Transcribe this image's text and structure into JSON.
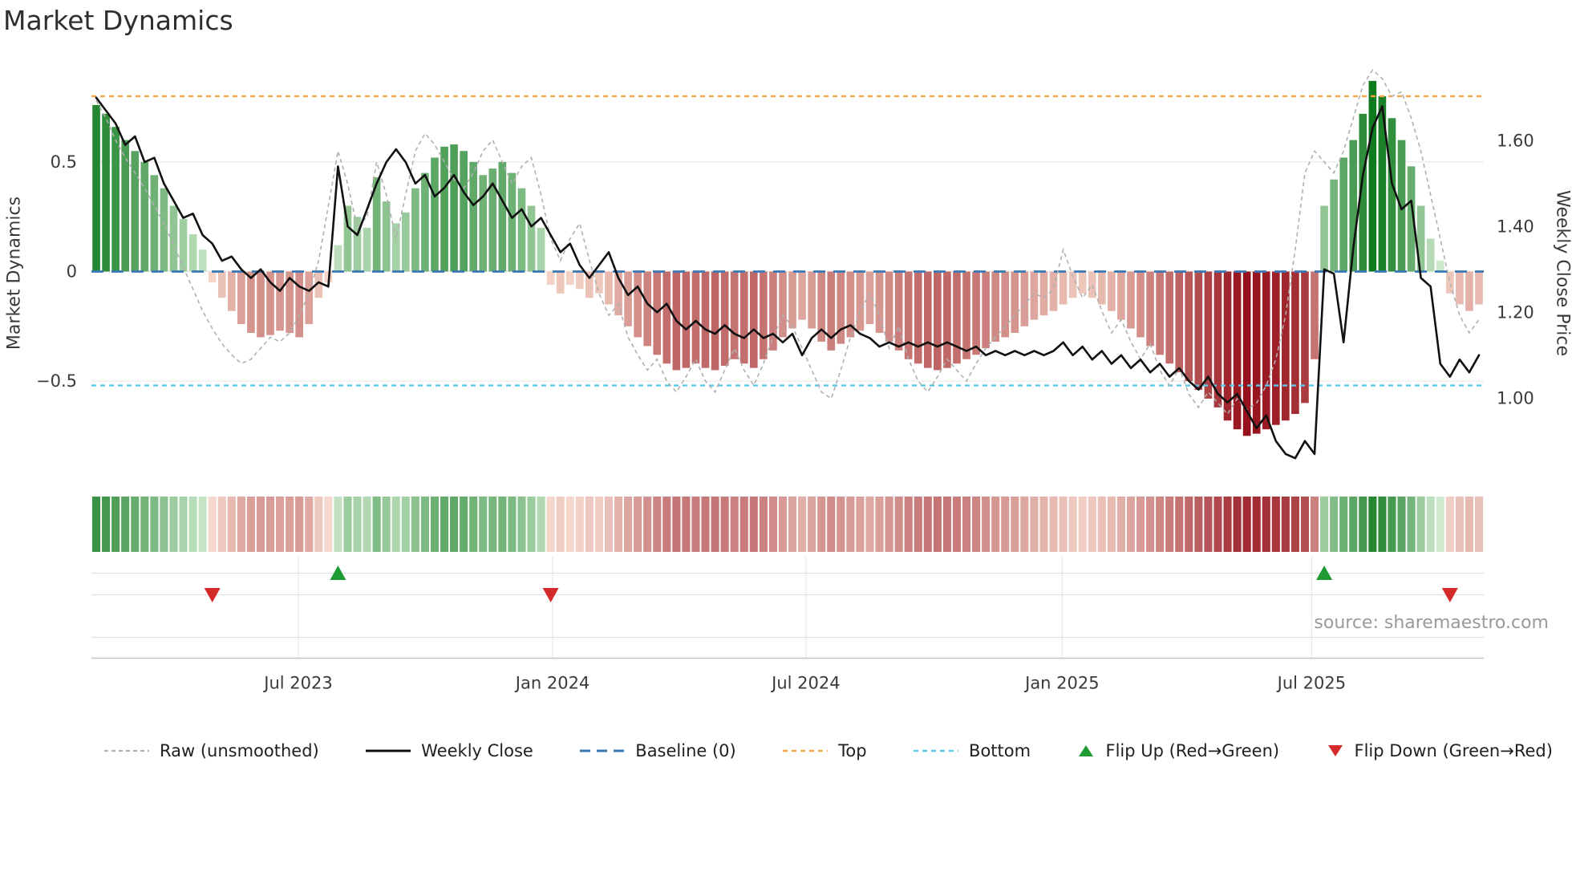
{
  "colors": {
    "green_dark": "#0f7a1e",
    "green_light": "#d8efd5",
    "red_dark": "#96121c",
    "red_light": "#fbe3d4",
    "baseline_blue": "#3878b4",
    "top_orange": "#f2a74b",
    "bottom_cyan": "#5bc8ea",
    "raw_gray": "#b0b0b0",
    "close_black": "#111111",
    "grid_gray": "#e8e8e8",
    "axis_gray": "#c4c4c4",
    "text_dark": "#3a3a3a",
    "text_muted": "#9a9a9a",
    "flip_up_green": "#1e9b33",
    "flip_down_red": "#d42a2a"
  },
  "legend": {
    "raw": "Raw (unsmoothed)",
    "weekly_close": "Weekly Close",
    "baseline": "Baseline (0)",
    "top": "Top",
    "bottom": "Bottom",
    "flip_up": "Flip Up (Red→Green)",
    "flip_down": "Flip Down (Green→Red)"
  },
  "chart_data": {
    "type": "bar+line",
    "title": "Market Dynamics",
    "source": "source: sharemaestro.com",
    "x_unit": "weeks",
    "x_ticks": {
      "positions_week": [
        20.9,
        47.2,
        73.4,
        99.9,
        125.7
      ],
      "labels": [
        "Jul 2023",
        "Jan 2024",
        "Jul 2024",
        "Jan 2025",
        "Jul 2025"
      ]
    },
    "left_axis": {
      "label": "Market Dynamics",
      "range": [
        -0.95,
        0.95
      ],
      "ticks": [
        0.5,
        0,
        -0.5
      ],
      "tick_labels": [
        "0.5",
        "0",
        "−0.5"
      ]
    },
    "right_axis": {
      "label": "Weekly Close Price",
      "range": [
        0.81,
        1.78
      ],
      "ticks": [
        1.6,
        1.4,
        1.2,
        1.0
      ],
      "tick_labels": [
        "1.60",
        "1.40",
        "1.20",
        "1.00"
      ]
    },
    "reference_lines": {
      "baseline": 0,
      "top": 0.8,
      "bottom": -0.52
    },
    "flip_up_weeks": [
      25,
      127
    ],
    "flip_down_weeks": [
      12,
      47,
      140
    ],
    "series": [
      {
        "name": "Market Dynamics (smoothed bars)",
        "type": "bar",
        "axis": "left",
        "values": [
          0.76,
          0.72,
          0.66,
          0.6,
          0.55,
          0.5,
          0.44,
          0.38,
          0.3,
          0.24,
          0.17,
          0.1,
          -0.05,
          -0.12,
          -0.18,
          -0.24,
          -0.28,
          -0.3,
          -0.29,
          -0.27,
          -0.28,
          -0.3,
          -0.24,
          -0.12,
          -0.05,
          0.12,
          0.3,
          0.25,
          0.2,
          0.43,
          0.32,
          0.22,
          0.27,
          0.38,
          0.45,
          0.52,
          0.57,
          0.58,
          0.55,
          0.5,
          0.44,
          0.47,
          0.5,
          0.45,
          0.38,
          0.3,
          0.2,
          -0.06,
          -0.1,
          -0.06,
          -0.08,
          -0.12,
          -0.1,
          -0.15,
          -0.2,
          -0.25,
          -0.3,
          -0.34,
          -0.38,
          -0.42,
          -0.45,
          -0.44,
          -0.42,
          -0.44,
          -0.45,
          -0.43,
          -0.4,
          -0.42,
          -0.44,
          -0.4,
          -0.36,
          -0.3,
          -0.26,
          -0.22,
          -0.26,
          -0.32,
          -0.36,
          -0.33,
          -0.3,
          -0.27,
          -0.24,
          -0.28,
          -0.32,
          -0.36,
          -0.4,
          -0.42,
          -0.44,
          -0.45,
          -0.44,
          -0.42,
          -0.4,
          -0.38,
          -0.35,
          -0.32,
          -0.3,
          -0.28,
          -0.25,
          -0.22,
          -0.2,
          -0.18,
          -0.15,
          -0.12,
          -0.1,
          -0.12,
          -0.15,
          -0.18,
          -0.22,
          -0.26,
          -0.3,
          -0.34,
          -0.38,
          -0.42,
          -0.46,
          -0.5,
          -0.54,
          -0.58,
          -0.62,
          -0.68,
          -0.72,
          -0.75,
          -0.74,
          -0.72,
          -0.7,
          -0.68,
          -0.65,
          -0.6,
          -0.4,
          0.3,
          0.42,
          0.52,
          0.6,
          0.72,
          0.87,
          0.8,
          0.7,
          0.6,
          0.48,
          0.3,
          0.15,
          0.05,
          -0.1,
          -0.15,
          -0.18,
          -0.15
        ]
      },
      {
        "name": "Raw (unsmoothed)",
        "type": "line",
        "axis": "left",
        "values": [
          0.78,
          0.7,
          0.6,
          0.52,
          0.45,
          0.38,
          0.3,
          0.22,
          0.12,
          0.02,
          -0.08,
          -0.18,
          -0.26,
          -0.33,
          -0.38,
          -0.42,
          -0.4,
          -0.35,
          -0.3,
          -0.32,
          -0.28,
          -0.2,
          -0.1,
          0.05,
          0.3,
          0.55,
          0.4,
          0.2,
          0.25,
          0.5,
          0.35,
          0.15,
          0.35,
          0.55,
          0.63,
          0.58,
          0.5,
          0.42,
          0.38,
          0.45,
          0.55,
          0.6,
          0.5,
          0.4,
          0.48,
          0.52,
          0.35,
          0.15,
          0.05,
          0.15,
          0.22,
          0.05,
          -0.1,
          -0.2,
          -0.15,
          -0.3,
          -0.38,
          -0.45,
          -0.4,
          -0.5,
          -0.55,
          -0.48,
          -0.4,
          -0.5,
          -0.55,
          -0.45,
          -0.35,
          -0.45,
          -0.52,
          -0.42,
          -0.3,
          -0.2,
          -0.25,
          -0.35,
          -0.45,
          -0.55,
          -0.58,
          -0.45,
          -0.3,
          -0.18,
          -0.1,
          -0.2,
          -0.35,
          -0.25,
          -0.4,
          -0.5,
          -0.55,
          -0.48,
          -0.4,
          -0.45,
          -0.5,
          -0.42,
          -0.35,
          -0.3,
          -0.25,
          -0.2,
          -0.15,
          -0.1,
          -0.12,
          -0.08,
          0.1,
          -0.02,
          -0.12,
          -0.06,
          -0.18,
          -0.28,
          -0.22,
          -0.32,
          -0.4,
          -0.33,
          -0.45,
          -0.52,
          -0.44,
          -0.56,
          -0.62,
          -0.55,
          -0.6,
          -0.65,
          -0.58,
          -0.63,
          -0.6,
          -0.52,
          -0.4,
          -0.2,
          0.1,
          0.45,
          0.55,
          0.5,
          0.45,
          0.55,
          0.7,
          0.85,
          0.92,
          0.88,
          0.8,
          0.82,
          0.7,
          0.55,
          0.35,
          0.15,
          -0.05,
          -0.2,
          -0.28,
          -0.22
        ]
      },
      {
        "name": "Weekly Close",
        "type": "line",
        "axis": "right",
        "values": [
          1.7,
          1.67,
          1.64,
          1.59,
          1.61,
          1.55,
          1.56,
          1.5,
          1.46,
          1.42,
          1.43,
          1.38,
          1.36,
          1.32,
          1.33,
          1.3,
          1.28,
          1.3,
          1.27,
          1.25,
          1.28,
          1.26,
          1.25,
          1.27,
          1.26,
          1.54,
          1.4,
          1.38,
          1.44,
          1.5,
          1.55,
          1.58,
          1.55,
          1.5,
          1.52,
          1.47,
          1.49,
          1.52,
          1.48,
          1.45,
          1.47,
          1.5,
          1.46,
          1.42,
          1.44,
          1.4,
          1.42,
          1.38,
          1.34,
          1.36,
          1.31,
          1.28,
          1.31,
          1.34,
          1.28,
          1.24,
          1.26,
          1.22,
          1.2,
          1.22,
          1.18,
          1.16,
          1.18,
          1.16,
          1.15,
          1.17,
          1.15,
          1.14,
          1.16,
          1.14,
          1.15,
          1.13,
          1.15,
          1.1,
          1.14,
          1.16,
          1.14,
          1.16,
          1.17,
          1.15,
          1.14,
          1.12,
          1.13,
          1.12,
          1.13,
          1.12,
          1.13,
          1.12,
          1.13,
          1.12,
          1.11,
          1.12,
          1.1,
          1.11,
          1.1,
          1.11,
          1.1,
          1.11,
          1.1,
          1.11,
          1.13,
          1.1,
          1.12,
          1.09,
          1.11,
          1.08,
          1.1,
          1.07,
          1.09,
          1.06,
          1.08,
          1.05,
          1.07,
          1.04,
          1.02,
          1.05,
          1.01,
          0.99,
          1.01,
          0.97,
          0.93,
          0.96,
          0.9,
          0.87,
          0.86,
          0.9,
          0.87,
          1.3,
          1.29,
          1.13,
          1.35,
          1.52,
          1.63,
          1.68,
          1.5,
          1.44,
          1.46,
          1.28,
          1.26,
          1.08,
          1.05,
          1.09,
          1.06,
          1.1
        ]
      }
    ]
  }
}
